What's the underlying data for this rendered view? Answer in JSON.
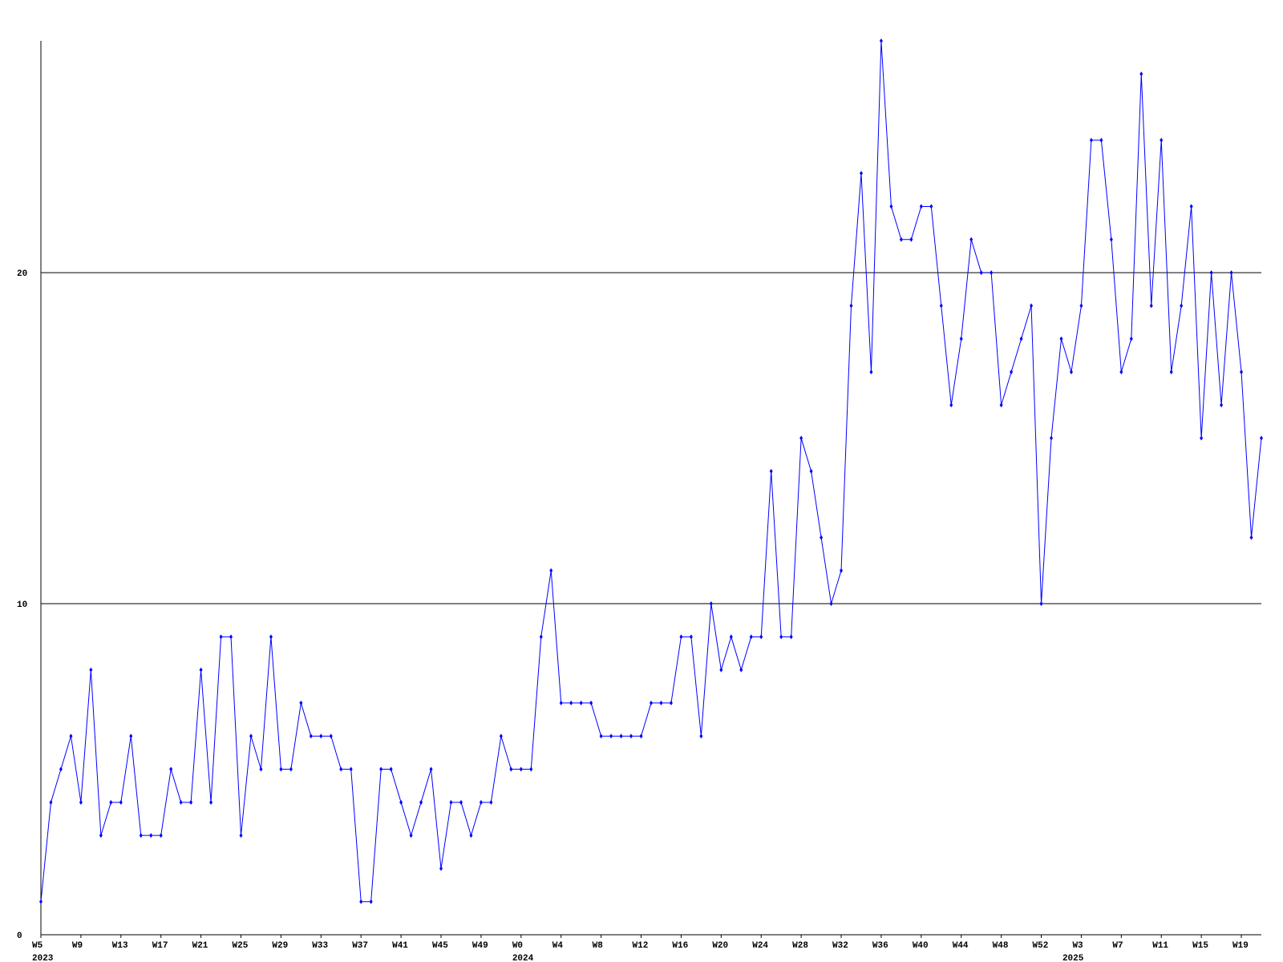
{
  "chart_data": {
    "type": "line",
    "categories": [
      "W5",
      null,
      null,
      null,
      "W9",
      null,
      null,
      null,
      "W13",
      null,
      null,
      null,
      "W17",
      null,
      null,
      null,
      "W21",
      null,
      null,
      null,
      "W25",
      null,
      null,
      null,
      "W29",
      null,
      null,
      null,
      "W33",
      null,
      null,
      null,
      "W37",
      null,
      null,
      null,
      "W41",
      null,
      null,
      null,
      "W45",
      null,
      null,
      null,
      "W49",
      null,
      null,
      null,
      "W0",
      null,
      null,
      null,
      "W4",
      null,
      null,
      null,
      "W8",
      null,
      null,
      null,
      "W12",
      null,
      null,
      null,
      "W16",
      null,
      null,
      null,
      "W20",
      null,
      null,
      null,
      "W24",
      null,
      null,
      null,
      "W28",
      null,
      null,
      null,
      "W32",
      null,
      null,
      null,
      "W36",
      null,
      null,
      null,
      "W40",
      null,
      null,
      null,
      "W44",
      null,
      null,
      null,
      "W48",
      null,
      null,
      null,
      "W52",
      null,
      null,
      null,
      "W3",
      null,
      null,
      null,
      "W7",
      null,
      null,
      null,
      "W11",
      null,
      null,
      null,
      "W15",
      null,
      null,
      null,
      "W19",
      null,
      null
    ],
    "years": [
      "2023",
      null,
      null,
      null,
      null,
      null,
      null,
      null,
      null,
      null,
      null,
      null,
      null,
      null,
      null,
      null,
      null,
      null,
      null,
      null,
      null,
      null,
      null,
      null,
      null,
      null,
      null,
      null,
      null,
      null,
      null,
      null,
      null,
      null,
      null,
      null,
      null,
      null,
      null,
      null,
      null,
      null,
      null,
      null,
      null,
      null,
      null,
      null,
      "2024",
      null,
      null,
      null,
      null,
      null,
      null,
      null,
      null,
      null,
      null,
      null,
      null,
      null,
      null,
      null,
      null,
      null,
      null,
      null,
      null,
      null,
      null,
      null,
      null,
      null,
      null,
      null,
      null,
      null,
      null,
      null,
      null,
      null,
      null,
      null,
      null,
      null,
      null,
      null,
      null,
      null,
      null,
      null,
      null,
      null,
      null,
      null,
      null,
      null,
      null,
      null,
      null,
      null,
      null,
      "2025",
      null,
      null,
      null,
      null,
      null,
      null,
      null,
      null,
      null,
      null,
      null,
      null,
      null,
      null,
      null,
      null,
      null,
      null,
      null,
      null,
      null
    ],
    "series": [
      {
        "color": "#0000ff",
        "values": [
          1,
          4,
          5,
          6,
          4,
          8,
          3,
          4,
          4,
          6,
          3,
          3,
          3,
          5,
          4,
          4,
          8,
          4,
          9,
          9,
          3,
          6,
          5,
          9,
          5,
          5,
          7,
          6,
          6,
          6,
          5,
          5,
          1,
          1,
          5,
          5,
          4,
          3,
          4,
          5,
          2,
          4,
          4,
          3,
          4,
          4,
          6,
          5,
          5,
          5,
          9,
          11,
          7,
          7,
          7,
          7,
          6,
          6,
          6,
          6,
          6,
          7,
          7,
          7,
          9,
          9,
          6,
          10,
          8,
          9,
          8,
          9,
          9,
          14,
          9,
          9,
          15,
          14,
          12,
          10,
          11,
          19,
          23,
          17,
          27,
          22,
          21,
          21,
          22,
          22,
          19,
          16,
          18,
          21,
          20,
          20,
          16,
          17,
          18,
          19,
          10,
          15,
          18,
          17,
          19,
          24,
          24,
          21,
          17,
          18,
          26,
          19,
          24,
          17,
          19,
          22,
          15,
          20,
          16,
          20,
          17,
          12,
          15
        ]
      }
    ],
    "ylim": [
      0,
      27
    ],
    "yticks": [
      0,
      10,
      20
    ],
    "grid": true
  }
}
